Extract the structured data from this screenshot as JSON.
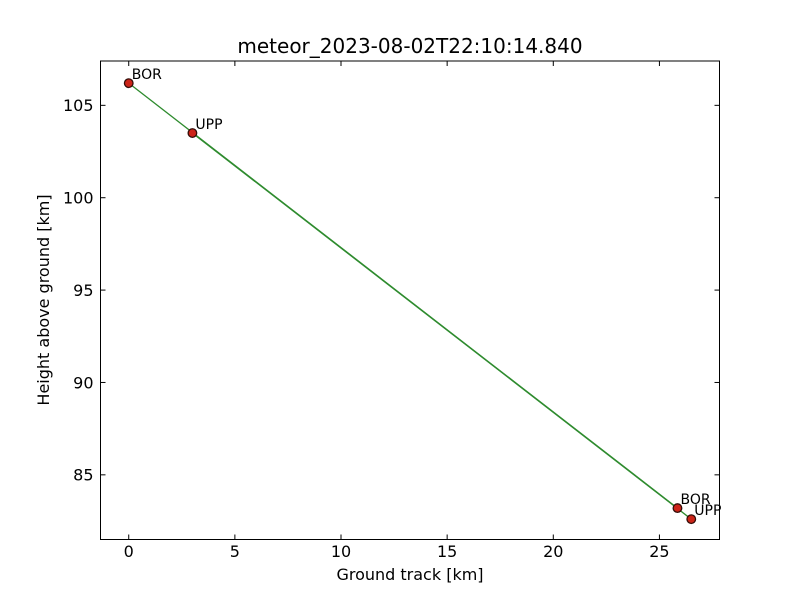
{
  "figure": {
    "title": "meteor_2023-08-02T22:10:14.840",
    "xlabel": "Ground track [km]",
    "ylabel": "Height above ground [km]"
  },
  "chart_data": {
    "type": "line",
    "title": "meteor_2023-08-02T22:10:14.840",
    "xlabel": "Ground track [km]",
    "ylabel": "Height above ground [km]",
    "xlim": [
      -1.33,
      27.83
    ],
    "ylim": [
      81.5,
      107.4
    ],
    "xticks": [
      0,
      5,
      10,
      15,
      20,
      25
    ],
    "yticks": [
      85,
      90,
      95,
      100,
      105
    ],
    "grid": false,
    "legend": false,
    "series": [
      {
        "name": "BOR",
        "points": [
          [
            0.0,
            106.2
          ],
          [
            25.85,
            83.2
          ]
        ]
      },
      {
        "name": "UPP",
        "points": [
          [
            3.0,
            103.5
          ],
          [
            26.5,
            82.6
          ]
        ]
      }
    ],
    "annotations": [
      {
        "text": "BOR",
        "x": 0.0,
        "y": 106.2
      },
      {
        "text": "UPP",
        "x": 3.0,
        "y": 103.5
      },
      {
        "text": "BOR",
        "x": 25.85,
        "y": 83.2
      },
      {
        "text": "UPP",
        "x": 26.5,
        "y": 82.6
      }
    ],
    "colors": {
      "line": "#2e8b2e",
      "marker_fill": "#cc2418",
      "marker_edge": "#330d08",
      "axis": "#000000",
      "background": "#ffffff"
    }
  }
}
